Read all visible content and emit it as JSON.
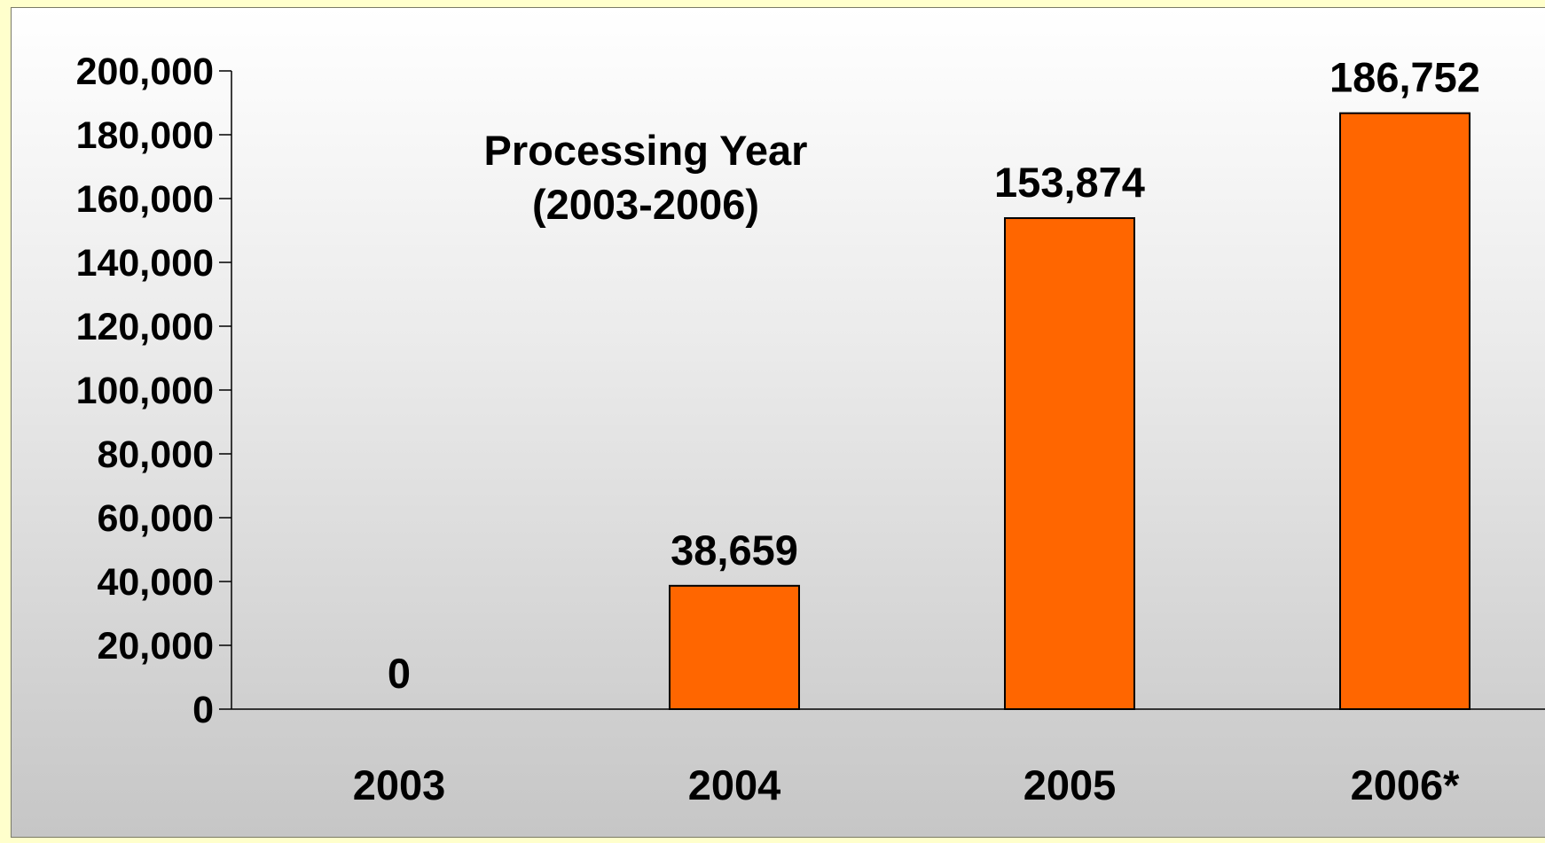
{
  "chart_data": {
    "type": "bar",
    "title_lines": [
      "Processing Year",
      "(2003-2006)"
    ],
    "categories": [
      "2003",
      "2004",
      "2005",
      "2006*"
    ],
    "values": [
      0,
      38659,
      153874,
      186752
    ],
    "data_labels": [
      "0",
      "38,659",
      "153,874",
      "186,752"
    ],
    "ylim": [
      0,
      200000
    ],
    "yticks": [
      0,
      20000,
      40000,
      60000,
      80000,
      100000,
      120000,
      140000,
      160000,
      180000,
      200000
    ],
    "ytick_labels": [
      "0",
      "20,000",
      "40,000",
      "60,000",
      "80,000",
      "100,000",
      "120,000",
      "140,000",
      "160,000",
      "180,000",
      "200,000"
    ],
    "grid": false,
    "legend": "none",
    "bar_color": "#ff6600",
    "bar_edge_color": "#000000",
    "page_background": "#ffffcc"
  }
}
